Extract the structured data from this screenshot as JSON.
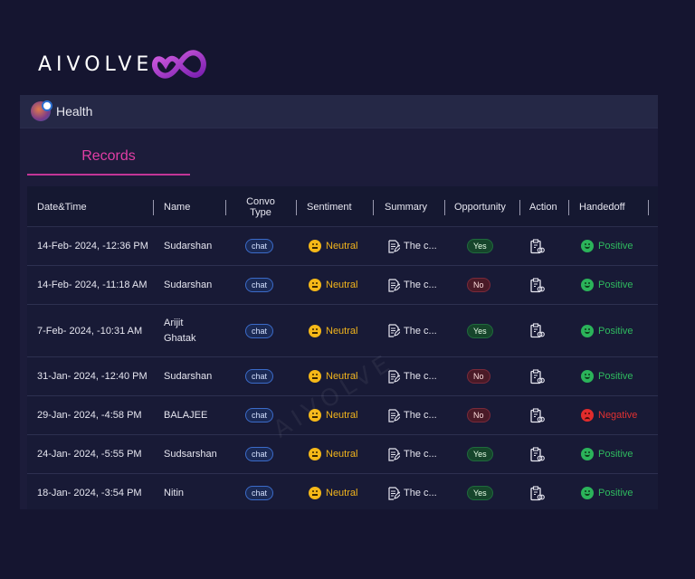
{
  "brand": {
    "name": "AIVOLVE"
  },
  "panel": {
    "title": "Health"
  },
  "tabs": [
    {
      "label": "Records"
    }
  ],
  "table": {
    "headers": {
      "datetime": "Date&Time",
      "name": "Name",
      "convo_type_1": "Convo",
      "convo_type_2": "Type",
      "sentiment": "Sentiment",
      "summary": "Summary",
      "opportunity": "Opportunity",
      "action": "Action",
      "handedoff": "Handedoff"
    },
    "rows": [
      {
        "datetime": "14-Feb- 2024, -12:36 PM",
        "name": "Sudarshan",
        "name2": "",
        "convo": "chat",
        "sentiment": "Neutral",
        "summary": "The c...",
        "opportunity": "Yes",
        "handedoff": "Positive"
      },
      {
        "datetime": "14-Feb- 2024, -11:18 AM",
        "name": "Sudarshan",
        "name2": "",
        "convo": "chat",
        "sentiment": "Neutral",
        "summary": "The c...",
        "opportunity": "No",
        "handedoff": "Positive"
      },
      {
        "datetime": "7-Feb- 2024, -10:31 AM",
        "name": "Arijit",
        "name2": "Ghatak",
        "convo": "chat",
        "sentiment": "Neutral",
        "summary": "The c...",
        "opportunity": "Yes",
        "handedoff": "Positive"
      },
      {
        "datetime": "31-Jan- 2024, -12:40 PM",
        "name": "Sudarshan",
        "name2": "",
        "convo": "chat",
        "sentiment": "Neutral",
        "summary": "The c...",
        "opportunity": "No",
        "handedoff": "Positive"
      },
      {
        "datetime": "29-Jan- 2024, -4:58 PM",
        "name": "BALAJEE",
        "name2": "",
        "convo": "chat",
        "sentiment": "Neutral",
        "summary": "The c...",
        "opportunity": "No",
        "handedoff": "Negative"
      },
      {
        "datetime": "24-Jan- 2024, -5:55 PM",
        "name": "Sudsarshan",
        "name2": "",
        "convo": "chat",
        "sentiment": "Neutral",
        "summary": "The c...",
        "opportunity": "Yes",
        "handedoff": "Positive"
      },
      {
        "datetime": "18-Jan- 2024, -3:54 PM",
        "name": "Nitin",
        "name2": "",
        "convo": "chat",
        "sentiment": "Neutral",
        "summary": "The c...",
        "opportunity": "Yes",
        "handedoff": "Positive"
      }
    ]
  },
  "colors": {
    "accent": "#e23ea5",
    "positive": "#2fbb5f",
    "negative": "#e03131",
    "neutral": "#f2b51c"
  },
  "icons": {
    "summary": "edit-document-icon",
    "action": "clipboard-link-icon",
    "app": "health-avatar-icon"
  }
}
